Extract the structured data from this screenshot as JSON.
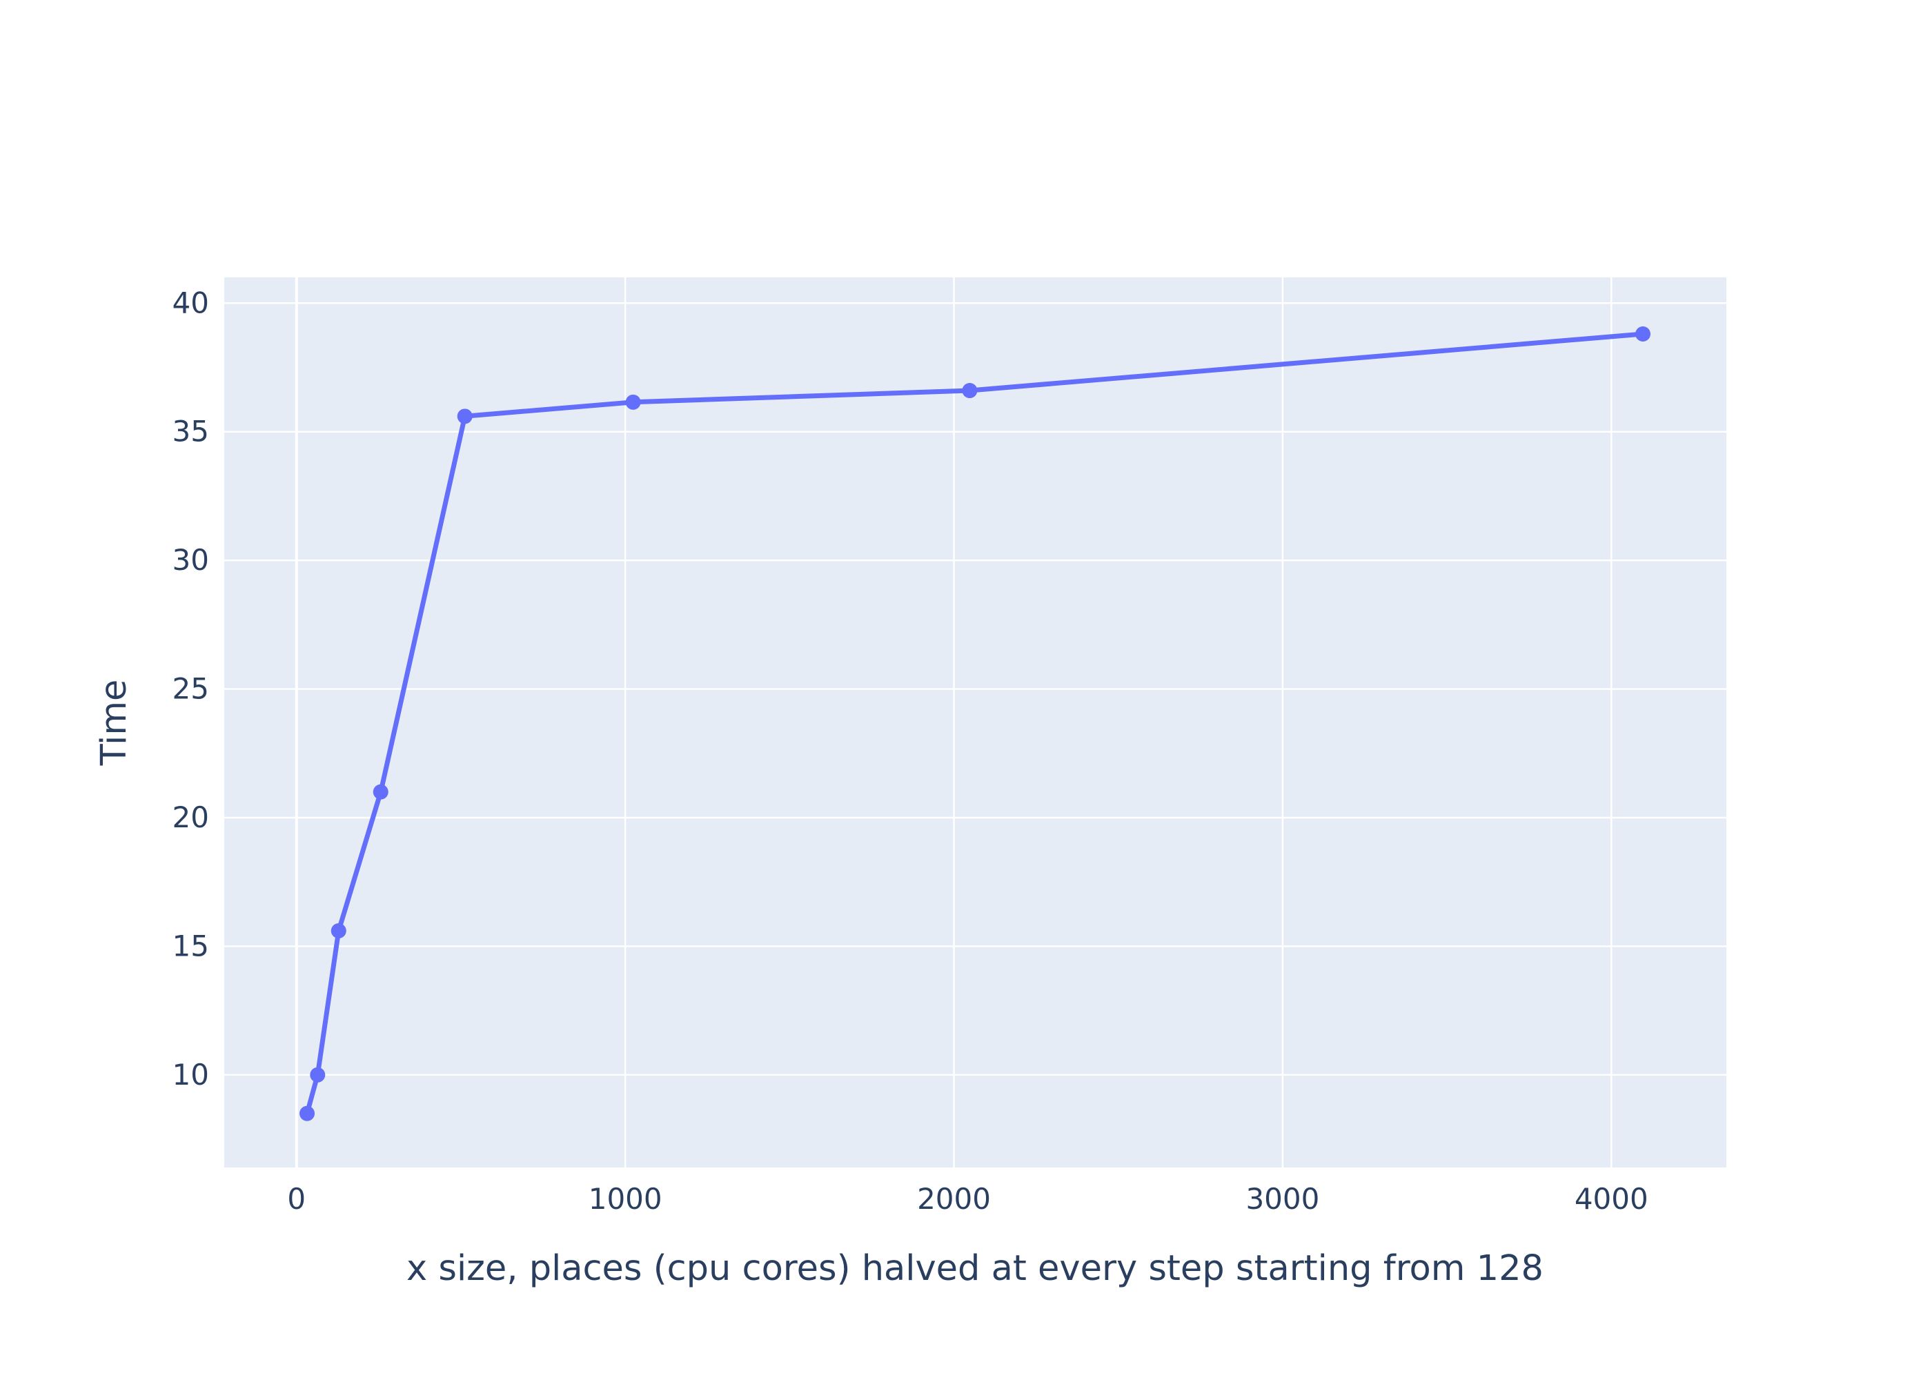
{
  "chart_data": {
    "type": "line",
    "title": "",
    "xlabel": "x size, places (cpu cores) halved at every step starting from 128",
    "ylabel": "Time",
    "xlim": [
      -220,
      4350
    ],
    "ylim": [
      6.4,
      41.0
    ],
    "xticks": [
      0,
      1000,
      2000,
      3000,
      4000
    ],
    "yticks": [
      10,
      15,
      20,
      25,
      30,
      35,
      40
    ],
    "grid": true,
    "legend": "none",
    "series": [
      {
        "x": [
          32,
          64,
          128,
          256,
          512,
          1024,
          2048,
          4096
        ],
        "y": [
          8.5,
          10.0,
          15.6,
          21.0,
          35.6,
          36.15,
          36.6,
          38.8
        ]
      }
    ],
    "colors": {
      "line": "#636efa",
      "plot_bg": "#e5ecf6",
      "grid": "#ffffff",
      "text": "#2a3f5f"
    }
  }
}
